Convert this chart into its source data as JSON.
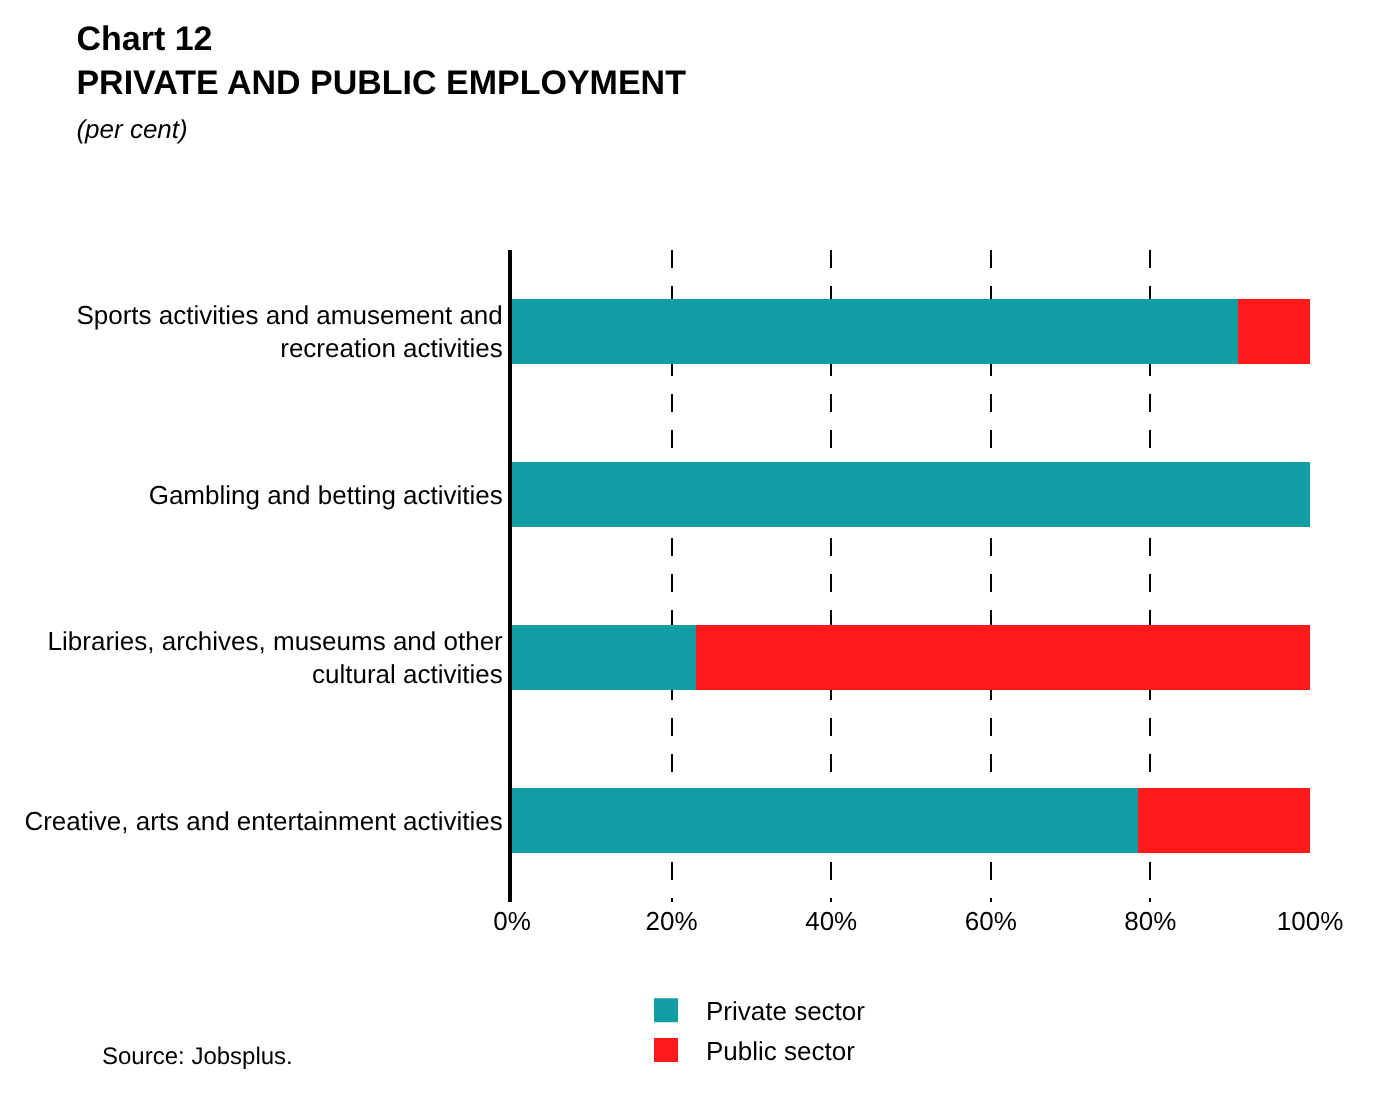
{
  "chart_data": {
    "type": "bar",
    "orientation": "horizontal",
    "stacked": true,
    "title": "Chart 12\nPRIVATE AND PUBLIC EMPLOYMENT",
    "subtitle": "(per cent)",
    "categories": [
      "Sports activities and amusement and recreation activities",
      "Gambling and betting activities",
      "Libraries, archives, museums and other cultural activities",
      "Creative, arts and entertainment activities"
    ],
    "series": [
      {
        "name": "Private sector",
        "color": "#109ea4",
        "values": [
          91,
          100,
          23,
          78.5
        ]
      },
      {
        "name": "Public sector",
        "color": "#fe1a1a",
        "values": [
          9,
          0,
          77,
          21.5
        ]
      }
    ],
    "xlim": [
      0,
      100
    ],
    "xticks": [
      {
        "value": 0,
        "label": "0%"
      },
      {
        "value": 20,
        "label": "20%"
      },
      {
        "value": 40,
        "label": "40%"
      },
      {
        "value": 60,
        "label": "60%"
      },
      {
        "value": 80,
        "label": "80%"
      },
      {
        "value": 100,
        "label": "100%"
      }
    ],
    "grid": "x",
    "legend": "bottom",
    "annotations": [
      "Source: Jobsplus."
    ]
  }
}
